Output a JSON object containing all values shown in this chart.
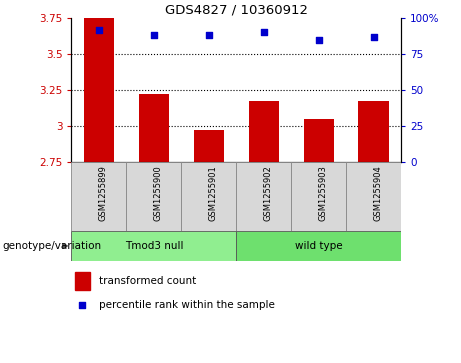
{
  "title": "GDS4827 / 10360912",
  "samples": [
    "GSM1255899",
    "GSM1255900",
    "GSM1255901",
    "GSM1255902",
    "GSM1255903",
    "GSM1255904"
  ],
  "transformed_counts": [
    3.75,
    3.22,
    2.97,
    3.17,
    3.05,
    3.17
  ],
  "percentile_ranks": [
    92,
    88,
    88,
    90,
    85,
    87
  ],
  "bar_bottom": 2.75,
  "ylim_left": [
    2.75,
    3.75
  ],
  "ylim_right": [
    0,
    100
  ],
  "yticks_left": [
    2.75,
    3.0,
    3.25,
    3.5,
    3.75
  ],
  "yticks_right": [
    0,
    25,
    50,
    75,
    100
  ],
  "ytick_labels_left": [
    "2.75",
    "3",
    "3.25",
    "3.5",
    "3.75"
  ],
  "ytick_labels_right": [
    "0",
    "25",
    "50",
    "75",
    "100%"
  ],
  "grid_values": [
    3.0,
    3.25,
    3.5
  ],
  "bar_color": "#cc0000",
  "dot_color": "#0000cc",
  "group_labels": [
    "Tmod3 null",
    "wild type"
  ],
  "group_colors": [
    "#90ee90",
    "#6ee06e"
  ],
  "legend_bar_label": "transformed count",
  "legend_dot_label": "percentile rank within the sample",
  "xlabel_annotation": "genotype/variation",
  "box_bg": "#d8d8d8",
  "plot_bg": "#ffffff"
}
